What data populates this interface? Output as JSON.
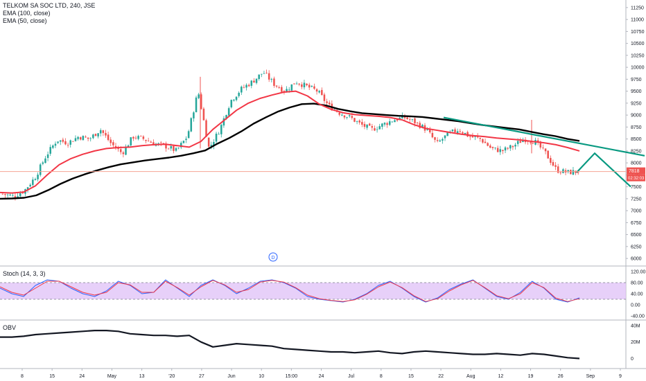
{
  "header": {
    "symbol_line": "TELKOM SA SOC LTD, 240, JSE",
    "ema100_label": "EMA (100, close)",
    "ema50_label": "EMA (50, close)"
  },
  "stoch_label": "Stoch (14, 3, 3)",
  "obv_label": "OBV",
  "price_tag": "7818",
  "countdown_tag": "02:32:03",
  "event_marker": "D",
  "colors": {
    "up_candle": "#26a69a",
    "down_candle": "#ef5350",
    "ema100": "#000000",
    "ema50": "#f23645",
    "trendline": "#089981",
    "stoch_band": "#e1c4f7",
    "stoch_k": "#2962ff",
    "stoch_d": "#f23645",
    "obv": "#131722",
    "price_line": "#f6a392"
  },
  "chart_data": [
    {
      "type": "candlestick",
      "title": "TELKOM SA SOC LTD, 240, JSE",
      "y_ticks": [
        11250,
        11000,
        10750,
        10500,
        10250,
        10000,
        9750,
        9500,
        9250,
        9000,
        8750,
        8500,
        8250,
        8000,
        7750,
        7500,
        7250,
        7000,
        6750,
        6500,
        6250,
        6000
      ],
      "ylim": [
        5900,
        11350
      ],
      "x_ticks": [
        "8",
        "15",
        "24",
        "May",
        "13",
        "'20",
        "27",
        "Jun",
        "10",
        "15:00",
        "24",
        "Jul",
        "8",
        "15",
        "22",
        "Aug",
        "12",
        "19",
        "26",
        "Sep",
        "9"
      ],
      "last_price": 7818,
      "ohlc_anchor_closes": [
        7350,
        7300,
        7420,
        7700,
        8150,
        8480,
        8420,
        8550,
        8500,
        8700,
        8400,
        8200,
        8550,
        8500,
        8400,
        8350,
        8250,
        8550,
        9500,
        8300,
        8700,
        9300,
        9550,
        9700,
        9900,
        9650,
        9500,
        9700,
        9600,
        9500,
        9200,
        9050,
        8950,
        8800,
        8700,
        8800,
        8900,
        8950,
        8850,
        8700,
        8400,
        8600,
        8700,
        8550,
        8500,
        8300,
        8250,
        8350,
        8500,
        8450,
        8200,
        7850,
        7800,
        7818
      ],
      "series": [
        {
          "name": "EMA (100, close)",
          "values": [
            7250,
            7255,
            7270,
            7320,
            7430,
            7560,
            7670,
            7760,
            7840,
            7910,
            7970,
            8010,
            8050,
            8080,
            8110,
            8150,
            8200,
            8260,
            8400,
            8520,
            8660,
            8820,
            8950,
            9070,
            9160,
            9230,
            9240,
            9200,
            9130,
            9080,
            9040,
            9020,
            9000,
            8985,
            8975,
            8960,
            8930,
            8900,
            8870,
            8830,
            8790,
            8760,
            8730,
            8700,
            8650,
            8600,
            8560,
            8500,
            8460
          ]
        },
        {
          "name": "EMA (50, close)",
          "values": [
            7380,
            7370,
            7390,
            7520,
            7750,
            7960,
            8090,
            8180,
            8250,
            8300,
            8320,
            8330,
            8360,
            8380,
            8390,
            8360,
            8330,
            8450,
            8700,
            8900,
            9100,
            9250,
            9350,
            9420,
            9480,
            9500,
            9400,
            9230,
            9120,
            9050,
            9010,
            8990,
            8975,
            8950,
            8900,
            8800,
            8720,
            8680,
            8640,
            8600,
            8570,
            8550,
            8520,
            8500,
            8480,
            8450,
            8420,
            8380,
            8320,
            8250
          ]
        },
        {
          "name": "trendline",
          "values": [
            8950,
            8800,
            8600,
            8300,
            7500
          ]
        }
      ]
    },
    {
      "type": "line",
      "title": "Stoch (14, 3, 3)",
      "y_ticks": [
        120.0,
        80.0,
        40.0,
        0.0,
        -40.0
      ],
      "band": [
        20,
        80
      ],
      "series": [
        {
          "name": "%K",
          "values": [
            60,
            40,
            30,
            70,
            90,
            85,
            60,
            40,
            30,
            50,
            85,
            70,
            40,
            45,
            90,
            60,
            30,
            70,
            90,
            70,
            40,
            60,
            85,
            90,
            80,
            60,
            30,
            20,
            15,
            10,
            20,
            40,
            70,
            85,
            60,
            30,
            10,
            25,
            55,
            75,
            90,
            60,
            30,
            20,
            45,
            85,
            60,
            20,
            10,
            25
          ]
        },
        {
          "name": "%D",
          "values": [
            65,
            45,
            35,
            60,
            85,
            85,
            65,
            45,
            35,
            45,
            80,
            72,
            45,
            45,
            85,
            62,
            35,
            65,
            88,
            72,
            45,
            55,
            82,
            88,
            82,
            62,
            35,
            22,
            16,
            12,
            18,
            38,
            65,
            82,
            62,
            33,
            12,
            22,
            50,
            72,
            88,
            62,
            33,
            22,
            40,
            80,
            62,
            24,
            12,
            22
          ]
        }
      ]
    },
    {
      "type": "line",
      "title": "OBV",
      "y_ticks": [
        "40M",
        "20M",
        "0"
      ],
      "series": [
        {
          "name": "OBV",
          "values": [
            26,
            26,
            27,
            29,
            30,
            31,
            32,
            33,
            34,
            34,
            33,
            30,
            29,
            28,
            28,
            27,
            28,
            20,
            14,
            16,
            18,
            17,
            16,
            15,
            12,
            11,
            10,
            9,
            8,
            8,
            7,
            8,
            9,
            7,
            6,
            8,
            9,
            8,
            7,
            6,
            5,
            5,
            6,
            5,
            4,
            6,
            5,
            3,
            1,
            0
          ]
        }
      ]
    }
  ]
}
